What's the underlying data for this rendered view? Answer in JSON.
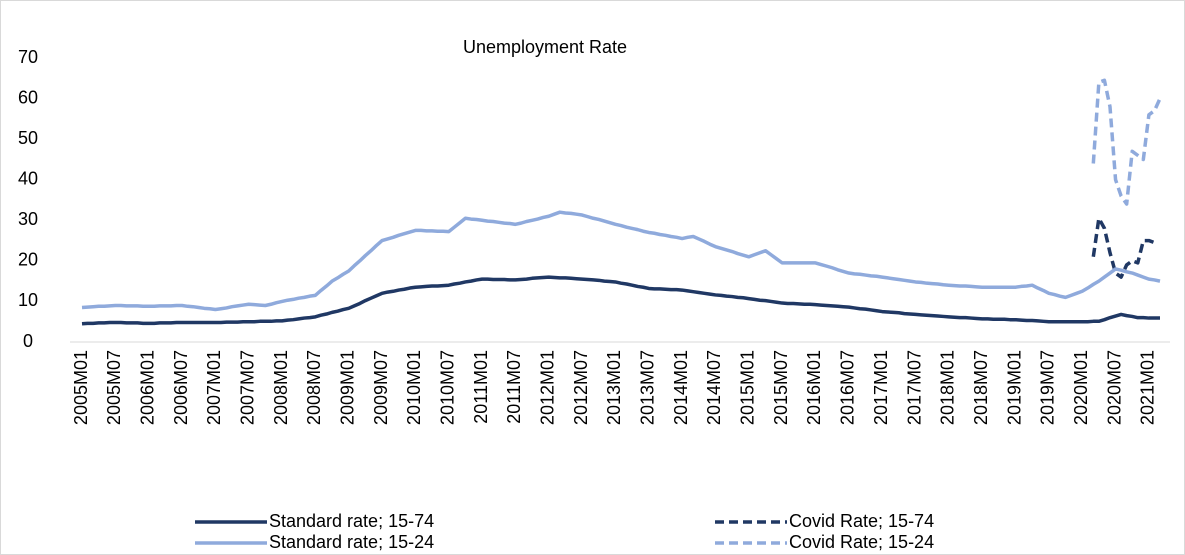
{
  "chart_data": {
    "type": "line",
    "title": "Unemployment Rate",
    "categories": [
      "2005M01",
      null,
      null,
      null,
      null,
      null,
      "2005M07",
      null,
      null,
      null,
      null,
      null,
      "2006M01",
      null,
      null,
      null,
      null,
      null,
      "2006M07",
      null,
      null,
      null,
      null,
      null,
      "2007M01",
      null,
      null,
      null,
      null,
      null,
      "2007M07",
      null,
      null,
      null,
      null,
      null,
      "2008M01",
      null,
      null,
      null,
      null,
      null,
      "2008M07",
      null,
      null,
      null,
      null,
      null,
      "2009M01",
      null,
      null,
      null,
      null,
      null,
      "2009M07",
      null,
      null,
      null,
      null,
      null,
      "2010M01",
      null,
      null,
      null,
      null,
      null,
      "2010M07",
      null,
      null,
      null,
      null,
      null,
      "2011M01",
      null,
      null,
      null,
      null,
      null,
      "2011M07",
      null,
      null,
      null,
      null,
      null,
      "2012M01",
      null,
      null,
      null,
      null,
      null,
      "2012M07",
      null,
      null,
      null,
      null,
      null,
      "2013M01",
      null,
      null,
      null,
      null,
      null,
      "2013M07",
      null,
      null,
      null,
      null,
      null,
      "2014M01",
      null,
      null,
      null,
      null,
      null,
      "2014M07",
      null,
      null,
      null,
      null,
      null,
      "2015M01",
      null,
      null,
      null,
      null,
      null,
      "2015M07",
      null,
      null,
      null,
      null,
      null,
      "2016M01",
      null,
      null,
      null,
      null,
      null,
      "2016M07",
      null,
      null,
      null,
      null,
      null,
      "2017M01",
      null,
      null,
      null,
      null,
      null,
      "2017M07",
      null,
      null,
      null,
      null,
      null,
      "2018M01",
      null,
      null,
      null,
      null,
      null,
      "2018M07",
      null,
      null,
      null,
      null,
      null,
      "2019M01",
      null,
      null,
      null,
      null,
      null,
      "2019M07",
      null,
      null,
      null,
      null,
      null,
      "2020M01",
      null,
      null,
      null,
      null,
      null,
      "2020M07",
      null,
      null,
      null,
      null,
      null,
      "2021M01",
      null,
      null
    ],
    "series": [
      {
        "name": "Standard rate; 15-74",
        "color": "#203864",
        "dashed": false,
        "values": [
          4.5,
          4.6,
          4.6,
          4.7,
          4.7,
          4.8,
          4.8,
          4.8,
          4.7,
          4.7,
          4.7,
          4.6,
          4.6,
          4.6,
          4.7,
          4.7,
          4.7,
          4.8,
          4.8,
          4.8,
          4.8,
          4.8,
          4.8,
          4.8,
          4.8,
          4.8,
          4.9,
          4.9,
          4.9,
          5.0,
          5.0,
          5.0,
          5.1,
          5.1,
          5.1,
          5.2,
          5.2,
          5.4,
          5.5,
          5.7,
          5.9,
          6.0,
          6.2,
          6.6,
          6.9,
          7.3,
          7.6,
          8.0,
          8.3,
          8.9,
          9.5,
          10.2,
          10.8,
          11.4,
          12.0,
          12.3,
          12.5,
          12.8,
          13.0,
          13.3,
          13.5,
          13.6,
          13.7,
          13.8,
          13.8,
          13.9,
          14.0,
          14.3,
          14.5,
          14.8,
          15.0,
          15.3,
          15.5,
          15.5,
          15.4,
          15.4,
          15.4,
          15.3,
          15.3,
          15.4,
          15.5,
          15.7,
          15.8,
          15.9,
          16.0,
          15.9,
          15.8,
          15.8,
          15.7,
          15.6,
          15.5,
          15.4,
          15.3,
          15.2,
          15.0,
          14.9,
          14.8,
          14.5,
          14.3,
          14.0,
          13.7,
          13.5,
          13.2,
          13.1,
          13.1,
          13.0,
          12.9,
          12.9,
          12.8,
          12.6,
          12.4,
          12.2,
          12.0,
          11.8,
          11.6,
          11.5,
          11.3,
          11.2,
          11.0,
          10.9,
          10.7,
          10.5,
          10.3,
          10.2,
          10.0,
          9.8,
          9.6,
          9.5,
          9.5,
          9.4,
          9.3,
          9.3,
          9.2,
          9.1,
          9.0,
          8.9,
          8.8,
          8.7,
          8.6,
          8.4,
          8.2,
          8.1,
          7.9,
          7.7,
          7.5,
          7.4,
          7.3,
          7.2,
          7.0,
          6.9,
          6.8,
          6.7,
          6.6,
          6.5,
          6.4,
          6.3,
          6.2,
          6.1,
          6.0,
          6.0,
          5.9,
          5.8,
          5.7,
          5.7,
          5.6,
          5.6,
          5.6,
          5.5,
          5.5,
          5.4,
          5.3,
          5.3,
          5.2,
          5.1,
          5.0,
          5.0,
          5.0,
          5.0,
          5.0,
          5.0,
          5.0,
          5.0,
          5.1,
          5.1,
          5.5,
          6.0,
          6.4,
          6.8,
          6.5,
          6.3,
          6.0,
          6.0,
          5.9,
          5.9,
          5.9
        ]
      },
      {
        "name": "Covid Rate; 15-74",
        "color": "#203864",
        "dashed": true,
        "values": [
          null,
          null,
          null,
          null,
          null,
          null,
          null,
          null,
          null,
          null,
          null,
          null,
          null,
          null,
          null,
          null,
          null,
          null,
          null,
          null,
          null,
          null,
          null,
          null,
          null,
          null,
          null,
          null,
          null,
          null,
          null,
          null,
          null,
          null,
          null,
          null,
          null,
          null,
          null,
          null,
          null,
          null,
          null,
          null,
          null,
          null,
          null,
          null,
          null,
          null,
          null,
          null,
          null,
          null,
          null,
          null,
          null,
          null,
          null,
          null,
          null,
          null,
          null,
          null,
          null,
          null,
          null,
          null,
          null,
          null,
          null,
          null,
          null,
          null,
          null,
          null,
          null,
          null,
          null,
          null,
          null,
          null,
          null,
          null,
          null,
          null,
          null,
          null,
          null,
          null,
          null,
          null,
          null,
          null,
          null,
          null,
          null,
          null,
          null,
          null,
          null,
          null,
          null,
          null,
          null,
          null,
          null,
          null,
          null,
          null,
          null,
          null,
          null,
          null,
          null,
          null,
          null,
          null,
          null,
          null,
          null,
          null,
          null,
          null,
          null,
          null,
          null,
          null,
          null,
          null,
          null,
          null,
          null,
          null,
          null,
          null,
          null,
          null,
          null,
          null,
          null,
          null,
          null,
          null,
          null,
          null,
          null,
          null,
          null,
          null,
          null,
          null,
          null,
          null,
          null,
          null,
          null,
          null,
          null,
          null,
          null,
          null,
          null,
          null,
          null,
          null,
          null,
          null,
          null,
          null,
          null,
          null,
          null,
          null,
          null,
          null,
          null,
          null,
          null,
          null,
          null,
          null,
          21,
          30.5,
          28,
          22,
          17,
          16,
          19,
          20,
          19.5,
          25,
          25,
          24.5,
          null
        ]
      },
      {
        "name": "Standard rate; 15-24",
        "color": "#8faadc",
        "dashed": false,
        "values": [
          8.5,
          8.6,
          8.7,
          8.8,
          8.8,
          8.9,
          9.0,
          9.0,
          8.9,
          8.9,
          8.9,
          8.8,
          8.8,
          8.8,
          8.9,
          8.9,
          8.9,
          9.0,
          9.0,
          8.8,
          8.7,
          8.5,
          8.3,
          8.2,
          8.0,
          8.2,
          8.4,
          8.7,
          8.9,
          9.1,
          9.3,
          9.2,
          9.1,
          9.0,
          9.3,
          9.7,
          10.0,
          10.3,
          10.5,
          10.8,
          11.0,
          11.3,
          11.5,
          12.7,
          13.8,
          15.0,
          15.8,
          16.7,
          17.5,
          18.8,
          20.0,
          21.3,
          22.5,
          23.8,
          25.0,
          25.4,
          25.8,
          26.3,
          26.7,
          27.1,
          27.5,
          27.5,
          27.4,
          27.4,
          27.3,
          27.3,
          27.2,
          28.3,
          29.4,
          30.5,
          30.3,
          30.2,
          30.0,
          29.8,
          29.7,
          29.5,
          29.3,
          29.2,
          29.0,
          29.3,
          29.7,
          30.0,
          30.3,
          30.7,
          31.0,
          31.5,
          32.0,
          31.8,
          31.7,
          31.5,
          31.3,
          30.9,
          30.5,
          30.2,
          29.8,
          29.4,
          29.0,
          28.7,
          28.3,
          28.0,
          27.7,
          27.3,
          27.0,
          26.8,
          26.5,
          26.3,
          26.0,
          25.8,
          25.5,
          25.8,
          26.0,
          25.4,
          24.8,
          24.1,
          23.5,
          23.1,
          22.7,
          22.3,
          21.8,
          21.4,
          21.0,
          21.5,
          22.0,
          22.5,
          21.5,
          20.5,
          19.5,
          19.5,
          19.5,
          19.5,
          19.5,
          19.5,
          19.5,
          19.1,
          18.7,
          18.3,
          17.8,
          17.4,
          17.0,
          16.8,
          16.7,
          16.5,
          16.3,
          16.2,
          16.0,
          15.8,
          15.6,
          15.4,
          15.2,
          15.0,
          14.8,
          14.7,
          14.5,
          14.4,
          14.3,
          14.1,
          14.0,
          13.9,
          13.8,
          13.8,
          13.7,
          13.6,
          13.5,
          13.5,
          13.5,
          13.5,
          13.5,
          13.5,
          13.5,
          13.7,
          13.8,
          14.0,
          13.3,
          12.7,
          12.0,
          11.7,
          11.3,
          11.0,
          11.5,
          12.0,
          12.5,
          13.3,
          14.2,
          15.0,
          16.0,
          17.0,
          18.0,
          17.7,
          17.3,
          17.0,
          16.5,
          16.0,
          15.5,
          15.3,
          15.0
        ]
      },
      {
        "name": "Covid Rate; 15-24",
        "color": "#8faadc",
        "dashed": true,
        "values": [
          null,
          null,
          null,
          null,
          null,
          null,
          null,
          null,
          null,
          null,
          null,
          null,
          null,
          null,
          null,
          null,
          null,
          null,
          null,
          null,
          null,
          null,
          null,
          null,
          null,
          null,
          null,
          null,
          null,
          null,
          null,
          null,
          null,
          null,
          null,
          null,
          null,
          null,
          null,
          null,
          null,
          null,
          null,
          null,
          null,
          null,
          null,
          null,
          null,
          null,
          null,
          null,
          null,
          null,
          null,
          null,
          null,
          null,
          null,
          null,
          null,
          null,
          null,
          null,
          null,
          null,
          null,
          null,
          null,
          null,
          null,
          null,
          null,
          null,
          null,
          null,
          null,
          null,
          null,
          null,
          null,
          null,
          null,
          null,
          null,
          null,
          null,
          null,
          null,
          null,
          null,
          null,
          null,
          null,
          null,
          null,
          null,
          null,
          null,
          null,
          null,
          null,
          null,
          null,
          null,
          null,
          null,
          null,
          null,
          null,
          null,
          null,
          null,
          null,
          null,
          null,
          null,
          null,
          null,
          null,
          null,
          null,
          null,
          null,
          null,
          null,
          null,
          null,
          null,
          null,
          null,
          null,
          null,
          null,
          null,
          null,
          null,
          null,
          null,
          null,
          null,
          null,
          null,
          null,
          null,
          null,
          null,
          null,
          null,
          null,
          null,
          null,
          null,
          null,
          null,
          null,
          null,
          null,
          null,
          null,
          null,
          null,
          null,
          null,
          null,
          null,
          null,
          null,
          null,
          null,
          null,
          null,
          null,
          null,
          null,
          null,
          null,
          null,
          null,
          null,
          null,
          null,
          44,
          64,
          64.5,
          58,
          40,
          36,
          34,
          47,
          46,
          45,
          56,
          57,
          60
        ]
      }
    ],
    "ylim": [
      0,
      70
    ],
    "yticks": [
      0,
      10,
      20,
      30,
      40,
      50,
      60,
      70
    ],
    "grid": false
  }
}
